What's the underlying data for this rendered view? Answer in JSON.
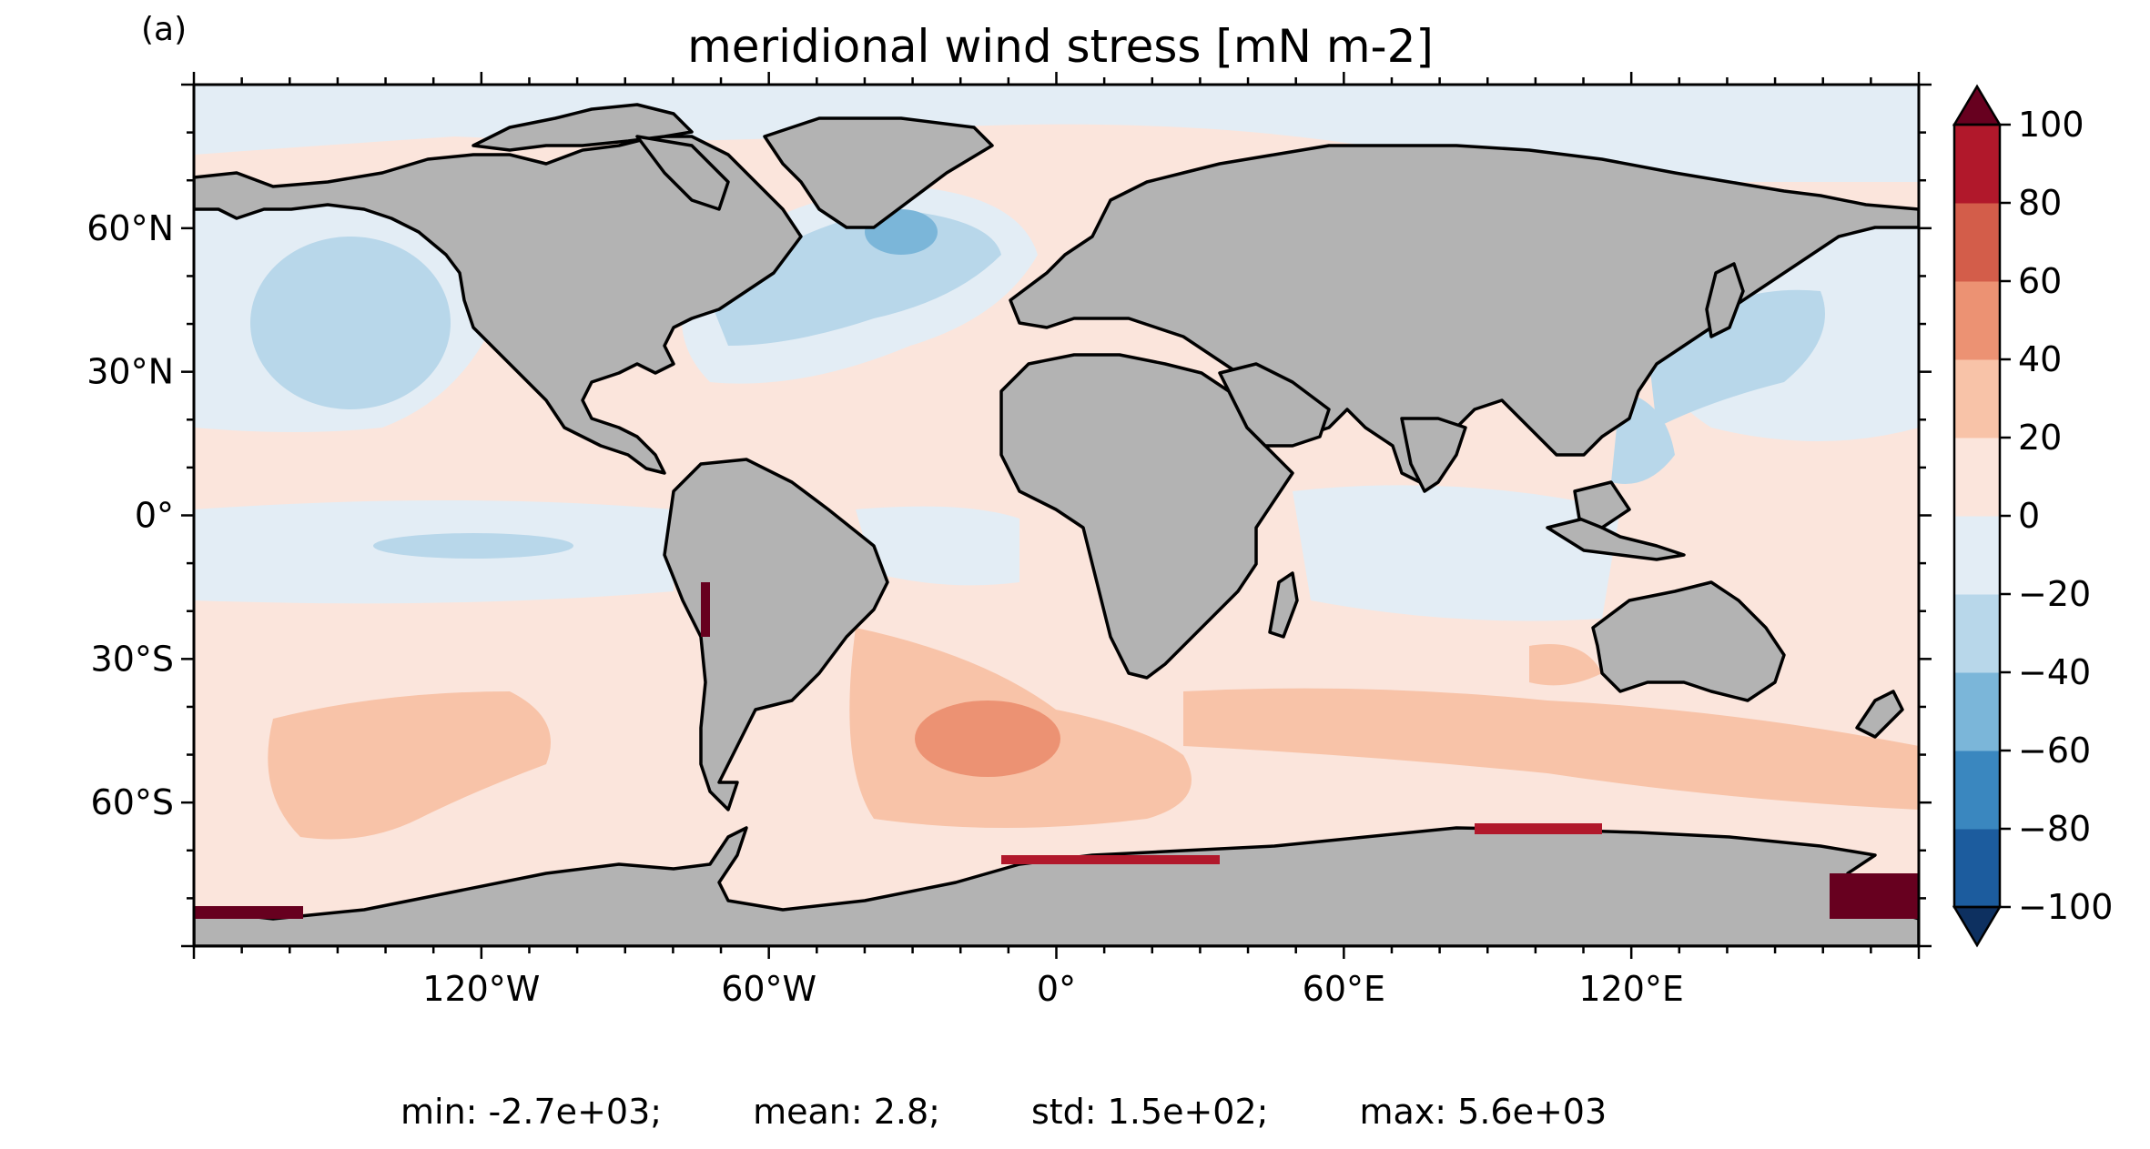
{
  "panel_label": "(a)",
  "title": "meridional wind stress [mN m-2]",
  "map": {
    "projection": "PlateCarree",
    "extent_lon": [
      -180,
      180
    ],
    "extent_lat": [
      -90,
      90
    ],
    "land_color": "#b3b3b3",
    "coastline_color": "#000000",
    "lon_ticks": [
      {
        "value": -120,
        "label": "120°W"
      },
      {
        "value": -60,
        "label": "60°W"
      },
      {
        "value": 0,
        "label": "0°"
      },
      {
        "value": 60,
        "label": "60°E"
      },
      {
        "value": 120,
        "label": "120°E"
      }
    ],
    "lat_ticks": [
      {
        "value": 60,
        "label": "60°N"
      },
      {
        "value": 30,
        "label": "30°N"
      },
      {
        "value": 0,
        "label": "0°"
      },
      {
        "value": -30,
        "label": "30°S"
      },
      {
        "value": -60,
        "label": "60°S"
      }
    ]
  },
  "colorbar": {
    "levels": [
      -100,
      -80,
      -60,
      -40,
      -20,
      0,
      20,
      40,
      60,
      80,
      100
    ],
    "labels": [
      "−100",
      "−80",
      "−60",
      "−40",
      "−20",
      "0",
      "20",
      "40",
      "60",
      "80",
      "100"
    ],
    "colors": [
      "#1c5c9e",
      "#3a87bf",
      "#7bb6d9",
      "#b8d7ea",
      "#e3edf5",
      "#fbe5dc",
      "#f8c3a8",
      "#ec9273",
      "#d35d4a",
      "#b1182b"
    ],
    "under_color": "#0d3060",
    "over_color": "#67001f",
    "extend": "both"
  },
  "stats": {
    "min": "min: -2.7e+03;",
    "mean": "mean: 2.8;",
    "std": "std: 1.5e+02;",
    "max": "max: 5.6e+03"
  }
}
